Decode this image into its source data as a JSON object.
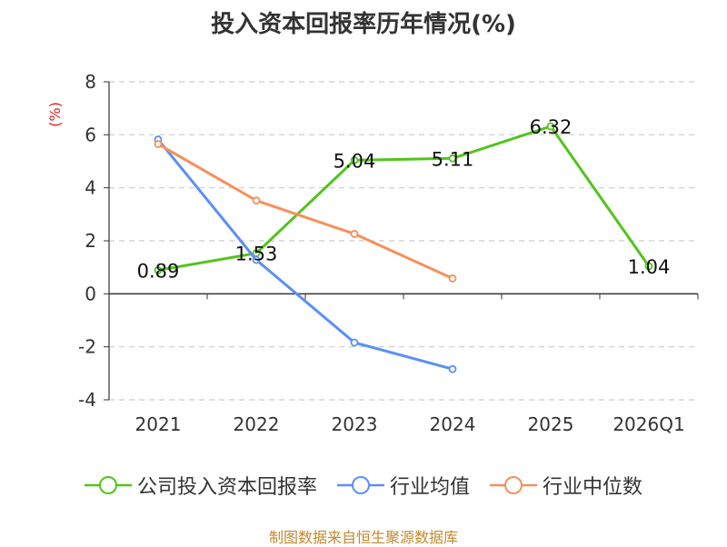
{
  "chart_data": {
    "type": "line",
    "title": "投入资本回报率历年情况(%)",
    "ylabel": "(%)",
    "categories": [
      "2021",
      "2022",
      "2023",
      "2024",
      "2025",
      "2026Q1"
    ],
    "ylim": [
      -4,
      8
    ],
    "yticks": [
      -4,
      -2,
      0,
      2,
      4,
      6,
      8
    ],
    "grid": true,
    "legend_position": "bottom",
    "series": [
      {
        "name": "公司投入资本回报率",
        "color": "#52c41a",
        "values": [
          0.89,
          1.53,
          5.04,
          5.11,
          6.32,
          1.04
        ],
        "labels": [
          "0.89",
          "1.53",
          "5.04",
          "5.11",
          "6.32",
          "1.04"
        ]
      },
      {
        "name": "行业均值",
        "color": "#5b8ff9",
        "values": [
          5.82,
          1.28,
          -1.84,
          -2.84,
          null,
          null
        ]
      },
      {
        "name": "行业中位数",
        "color": "#f6905c",
        "values": [
          5.65,
          3.52,
          2.26,
          0.58,
          null,
          null
        ]
      }
    ]
  },
  "source": "制图数据来自恒生聚源数据库"
}
